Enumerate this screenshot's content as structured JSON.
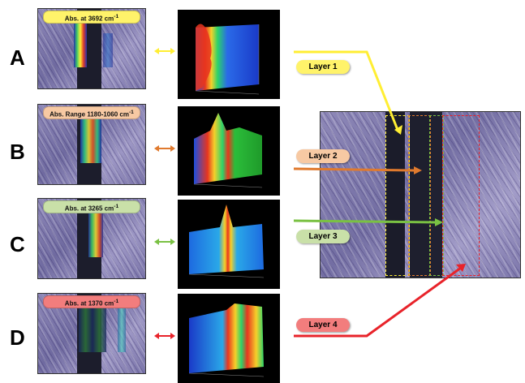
{
  "panels": [
    {
      "letter": "A",
      "label_text": "Abs. at 3692 cm",
      "label_sup": "-1",
      "color": "#ffee33",
      "pill_color": "#fff36a"
    },
    {
      "letter": "B",
      "label_text": "Abs. Range 1180-1060 cm",
      "label_sup": "-1",
      "color": "#e07a2e",
      "pill_color": "#f7c9a3"
    },
    {
      "letter": "C",
      "label_text": "Abs. at 3265 cm",
      "label_sup": "-1",
      "color": "#7ac143",
      "pill_color": "#c9e0a8"
    },
    {
      "letter": "D",
      "label_text": "Abs. at 1370 cm",
      "label_sup": "-1",
      "color": "#e8232a",
      "pill_color": "#f27d7d"
    }
  ],
  "layers": [
    {
      "label": "Layer 1",
      "color": "#ffee33",
      "pill_color": "#fff36a"
    },
    {
      "label": "Layer 2",
      "color": "#e07a2e",
      "pill_color": "#f7c9a3"
    },
    {
      "label": "Layer 3",
      "color": "#7ac143",
      "pill_color": "#c9e0a8"
    },
    {
      "label": "Layer 4",
      "color": "#e8232a",
      "pill_color": "#f27d7d"
    }
  ]
}
